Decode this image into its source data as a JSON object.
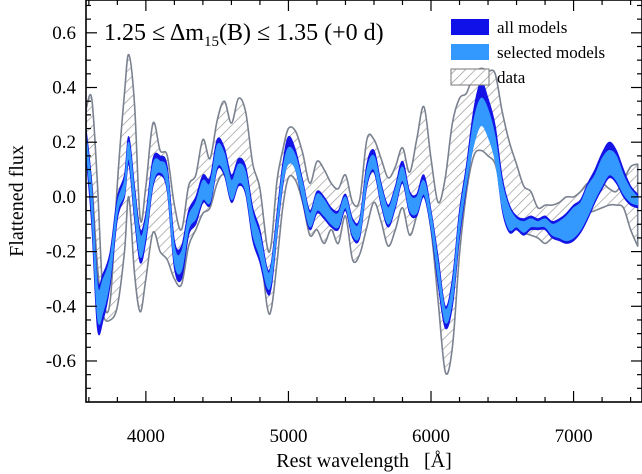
{
  "chart_data": {
    "type": "area",
    "title": {
      "prefix": "1.25 ≤ Δm",
      "subscript": "15",
      "suffix": "(B) ≤ 1.35 (+0 d)"
    },
    "xlabel": "Rest wavelength   [Å]",
    "ylabel": "Flattened flux",
    "xlim": [
      3580,
      7480
    ],
    "ylim": [
      -0.75,
      0.72
    ],
    "xticks": [
      {
        "value": 4000,
        "label": "4000"
      },
      {
        "value": 5000,
        "label": "5000"
      },
      {
        "value": 6000,
        "label": "6000"
      },
      {
        "value": 7000,
        "label": "7000"
      }
    ],
    "yticks": [
      {
        "value": -0.6,
        "label": "-0.6"
      },
      {
        "value": -0.4,
        "label": "-0.4"
      },
      {
        "value": -0.2,
        "label": "-0.2"
      },
      {
        "value": 0.0,
        "label": "0.0"
      },
      {
        "value": 0.2,
        "label": "0.2"
      },
      {
        "value": 0.4,
        "label": "0.4"
      },
      {
        "value": 0.6,
        "label": "0.6"
      }
    ],
    "legend": {
      "position": "top-right",
      "entries": [
        {
          "label": "all models",
          "color": "#0000ee",
          "style": "solid"
        },
        {
          "label": "selected models",
          "color": "#3399ff",
          "style": "solid"
        },
        {
          "label": "data",
          "color": "#888888",
          "style": "hatched"
        }
      ]
    },
    "colors": {
      "all_models": "#1414e6",
      "selected_models": "#3399ff",
      "data_edge": "#7a8290",
      "hatch": "#9a9a9a"
    },
    "series": [
      {
        "name": "data",
        "x": [
          3580,
          3620,
          3660,
          3700,
          3750,
          3800,
          3850,
          3880,
          3920,
          3960,
          4000,
          4050,
          4100,
          4150,
          4200,
          4250,
          4300,
          4350,
          4400,
          4450,
          4500,
          4550,
          4600,
          4650,
          4700,
          4750,
          4800,
          4850,
          4880,
          4920,
          4960,
          5000,
          5050,
          5100,
          5150,
          5200,
          5250,
          5300,
          5350,
          5400,
          5450,
          5500,
          5550,
          5600,
          5650,
          5700,
          5750,
          5800,
          5850,
          5900,
          5950,
          6000,
          6050,
          6100,
          6150,
          6200,
          6250,
          6300,
          6350,
          6400,
          6450,
          6500,
          6550,
          6600,
          6650,
          6700,
          6750,
          6800,
          6850,
          6900,
          6950,
          7000,
          7050,
          7100,
          7150,
          7200,
          7250,
          7300,
          7350,
          7400,
          7450
        ],
        "upper": [
          0.32,
          0.36,
          0.05,
          -0.36,
          -0.38,
          0.05,
          0.38,
          0.52,
          0.34,
          -0.08,
          0.04,
          0.27,
          0.17,
          0.15,
          -0.03,
          -0.12,
          0.04,
          0.08,
          0.21,
          0.14,
          0.28,
          0.35,
          0.27,
          0.36,
          0.31,
          0.12,
          0.03,
          -0.18,
          -0.17,
          0.06,
          0.17,
          0.25,
          0.24,
          0.16,
          0.05,
          0.13,
          0.1,
          0.05,
          0.03,
          0.08,
          -0.02,
          -0.01,
          0.21,
          0.21,
          0.14,
          0.07,
          0.11,
          0.18,
          0.09,
          0.21,
          0.33,
          0.14,
          -0.02,
          0.07,
          0.27,
          0.36,
          0.38,
          0.45,
          0.47,
          0.46,
          0.45,
          0.31,
          0.2,
          0.12,
          0.04,
          0.02,
          -0.04,
          -0.03,
          -0.03,
          -0.02,
          0.0,
          0.0,
          0.02,
          0.05,
          0.04,
          0.05,
          0.03,
          0.02,
          0.06,
          0.11,
          0.12
        ],
        "lower": [
          0.2,
          0.05,
          -0.25,
          -0.43,
          -0.45,
          -0.4,
          -0.2,
          0.0,
          -0.28,
          -0.42,
          -0.3,
          -0.13,
          -0.2,
          -0.23,
          -0.3,
          -0.32,
          -0.18,
          -0.12,
          -0.06,
          -0.04,
          0.05,
          0.08,
          0.0,
          0.08,
          0.02,
          -0.1,
          -0.18,
          -0.4,
          -0.41,
          -0.24,
          -0.04,
          0.07,
          0.06,
          -0.02,
          -0.14,
          -0.12,
          -0.17,
          -0.12,
          -0.17,
          -0.07,
          -0.23,
          -0.21,
          -0.11,
          -0.02,
          -0.09,
          -0.18,
          -0.12,
          -0.04,
          -0.14,
          -0.07,
          0.01,
          -0.12,
          -0.38,
          -0.64,
          -0.55,
          -0.21,
          0.02,
          0.15,
          0.17,
          0.15,
          0.12,
          0.01,
          -0.06,
          -0.1,
          -0.13,
          -0.14,
          -0.15,
          -0.17,
          -0.15,
          -0.13,
          -0.1,
          -0.08,
          -0.07,
          -0.06,
          -0.05,
          -0.04,
          -0.03,
          -0.03,
          -0.04,
          -0.12,
          -0.18
        ]
      },
      {
        "name": "all models",
        "x": [
          3580,
          3620,
          3660,
          3700,
          3750,
          3800,
          3850,
          3880,
          3920,
          3960,
          4000,
          4050,
          4100,
          4150,
          4200,
          4250,
          4300,
          4350,
          4400,
          4450,
          4500,
          4550,
          4600,
          4650,
          4700,
          4750,
          4800,
          4850,
          4880,
          4920,
          4960,
          5000,
          5050,
          5100,
          5150,
          5200,
          5250,
          5300,
          5350,
          5400,
          5450,
          5500,
          5550,
          5600,
          5650,
          5700,
          5750,
          5800,
          5850,
          5900,
          5950,
          6000,
          6050,
          6100,
          6150,
          6200,
          6250,
          6300,
          6350,
          6400,
          6450,
          6500,
          6550,
          6600,
          6650,
          6700,
          6750,
          6800,
          6850,
          6900,
          6950,
          7000,
          7050,
          7100,
          7150,
          7200,
          7250,
          7300,
          7350,
          7400,
          7450
        ],
        "upper": [
          0.25,
          0.05,
          -0.3,
          -0.28,
          -0.2,
          0.0,
          0.08,
          0.22,
          0.04,
          -0.12,
          -0.06,
          0.14,
          0.15,
          0.11,
          -0.16,
          -0.18,
          -0.05,
          0.0,
          0.08,
          0.07,
          0.21,
          0.18,
          0.08,
          0.14,
          0.11,
          -0.04,
          -0.12,
          -0.26,
          -0.24,
          -0.06,
          0.12,
          0.22,
          0.17,
          0.06,
          -0.05,
          0.02,
          0.0,
          -0.04,
          -0.05,
          0.01,
          -0.08,
          -0.08,
          0.12,
          0.17,
          0.05,
          -0.03,
          0.04,
          0.13,
          0.02,
          0.01,
          0.08,
          -0.05,
          -0.22,
          -0.4,
          -0.3,
          -0.05,
          0.12,
          0.32,
          0.42,
          0.36,
          0.26,
          0.07,
          -0.03,
          -0.07,
          -0.08,
          -0.07,
          -0.08,
          -0.07,
          -0.09,
          -0.08,
          -0.06,
          -0.03,
          -0.01,
          0.05,
          0.1,
          0.16,
          0.2,
          0.17,
          0.1,
          0.04,
          0.01
        ],
        "lower": [
          0.15,
          -0.1,
          -0.48,
          -0.45,
          -0.32,
          -0.08,
          0.0,
          0.12,
          -0.08,
          -0.24,
          -0.16,
          0.04,
          0.08,
          0.02,
          -0.26,
          -0.3,
          -0.14,
          -0.1,
          -0.02,
          -0.03,
          0.1,
          0.08,
          -0.02,
          0.04,
          0.01,
          -0.16,
          -0.24,
          -0.35,
          -0.33,
          -0.14,
          0.04,
          0.13,
          0.1,
          -0.02,
          -0.12,
          -0.06,
          -0.08,
          -0.11,
          -0.12,
          -0.05,
          -0.15,
          -0.15,
          0.04,
          0.09,
          -0.03,
          -0.11,
          -0.04,
          0.05,
          -0.06,
          -0.07,
          0.0,
          -0.12,
          -0.32,
          -0.48,
          -0.4,
          -0.15,
          0.04,
          0.2,
          0.3,
          0.26,
          0.15,
          -0.05,
          -0.13,
          -0.12,
          -0.14,
          -0.12,
          -0.12,
          -0.12,
          -0.15,
          -0.16,
          -0.17,
          -0.16,
          -0.13,
          -0.08,
          -0.02,
          0.03,
          0.07,
          0.05,
          0.0,
          -0.03,
          -0.04
        ]
      },
      {
        "name": "selected models",
        "x": [
          3580,
          3620,
          3660,
          3700,
          3750,
          3800,
          3850,
          3880,
          3920,
          3960,
          4000,
          4050,
          4100,
          4150,
          4200,
          4250,
          4300,
          4350,
          4400,
          4450,
          4500,
          4550,
          4600,
          4650,
          4700,
          4750,
          4800,
          4850,
          4880,
          4920,
          4960,
          5000,
          5050,
          5100,
          5150,
          5200,
          5250,
          5300,
          5350,
          5400,
          5450,
          5500,
          5550,
          5600,
          5650,
          5700,
          5750,
          5800,
          5850,
          5900,
          5950,
          6000,
          6050,
          6100,
          6150,
          6200,
          6250,
          6300,
          6350,
          6400,
          6450,
          6500,
          6550,
          6600,
          6650,
          6700,
          6750,
          6800,
          6850,
          6900,
          6950,
          7000,
          7050,
          7100,
          7150,
          7200,
          7250,
          7300,
          7350,
          7400,
          7450
        ],
        "upper": [
          0.23,
          0.03,
          -0.32,
          -0.3,
          -0.22,
          -0.02,
          0.06,
          0.2,
          0.02,
          -0.14,
          -0.08,
          0.12,
          0.13,
          0.09,
          -0.18,
          -0.2,
          -0.07,
          -0.02,
          0.06,
          0.05,
          0.19,
          0.16,
          0.06,
          0.12,
          0.09,
          -0.06,
          -0.14,
          -0.27,
          -0.25,
          -0.08,
          0.1,
          0.18,
          0.15,
          0.05,
          -0.06,
          0.01,
          -0.01,
          -0.05,
          -0.06,
          0.0,
          -0.09,
          -0.09,
          0.1,
          0.15,
          0.04,
          -0.04,
          0.03,
          0.11,
          0.01,
          0.0,
          0.06,
          -0.06,
          -0.24,
          -0.41,
          -0.32,
          -0.07,
          0.1,
          0.28,
          0.36,
          0.32,
          0.22,
          0.05,
          -0.04,
          -0.08,
          -0.09,
          -0.08,
          -0.09,
          -0.08,
          -0.1,
          -0.09,
          -0.07,
          -0.04,
          -0.02,
          0.04,
          0.08,
          0.14,
          0.17,
          0.15,
          0.08,
          0.03,
          0.0
        ],
        "lower": [
          0.17,
          -0.06,
          -0.44,
          -0.42,
          -0.3,
          -0.06,
          0.01,
          0.14,
          -0.06,
          -0.22,
          -0.14,
          0.05,
          0.09,
          0.03,
          -0.24,
          -0.27,
          -0.12,
          -0.08,
          -0.01,
          -0.02,
          0.11,
          0.09,
          -0.01,
          0.05,
          0.02,
          -0.14,
          -0.22,
          -0.33,
          -0.31,
          -0.13,
          0.05,
          0.12,
          0.1,
          -0.01,
          -0.11,
          -0.05,
          -0.07,
          -0.1,
          -0.11,
          -0.04,
          -0.14,
          -0.14,
          0.05,
          0.1,
          -0.02,
          -0.1,
          -0.03,
          0.06,
          -0.05,
          -0.06,
          0.01,
          -0.11,
          -0.3,
          -0.46,
          -0.38,
          -0.13,
          0.05,
          0.19,
          0.26,
          0.22,
          0.13,
          -0.04,
          -0.12,
          -0.11,
          -0.13,
          -0.11,
          -0.11,
          -0.11,
          -0.14,
          -0.15,
          -0.16,
          -0.15,
          -0.12,
          -0.07,
          -0.01,
          0.04,
          0.08,
          0.06,
          0.01,
          -0.02,
          -0.03
        ]
      }
    ]
  }
}
